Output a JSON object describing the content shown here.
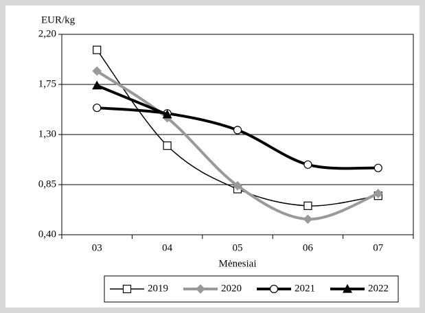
{
  "chart_data": {
    "type": "line",
    "ylabel": "EUR/kg",
    "xlabel": "Mėnesiai",
    "categories": [
      "03",
      "04",
      "05",
      "06",
      "07"
    ],
    "ylim": [
      0.4,
      2.2
    ],
    "yticks": [
      {
        "value": 0.4,
        "label": "0,40"
      },
      {
        "value": 0.85,
        "label": "0,85"
      },
      {
        "value": 1.3,
        "label": "1,30"
      },
      {
        "value": 1.75,
        "label": "1,75"
      },
      {
        "value": 2.2,
        "label": "2,20"
      }
    ],
    "grid": true,
    "smooth": true,
    "legend": "bottom",
    "series": [
      {
        "name": "2019",
        "color": "#000000",
        "width": 1.5,
        "marker": "square",
        "values": [
          2.06,
          1.2,
          0.81,
          0.66,
          0.75
        ]
      },
      {
        "name": "2020",
        "color": "#999999",
        "width": 4,
        "marker": "diamond",
        "values": [
          1.87,
          1.45,
          0.84,
          0.54,
          0.77
        ]
      },
      {
        "name": "2021",
        "color": "#000000",
        "width": 4,
        "marker": "circle",
        "values": [
          1.54,
          1.49,
          1.34,
          1.03,
          1.0
        ]
      },
      {
        "name": "2022",
        "color": "#000000",
        "width": 4,
        "marker": "triangle",
        "values": [
          1.74,
          1.48,
          null,
          null,
          null
        ]
      }
    ]
  }
}
